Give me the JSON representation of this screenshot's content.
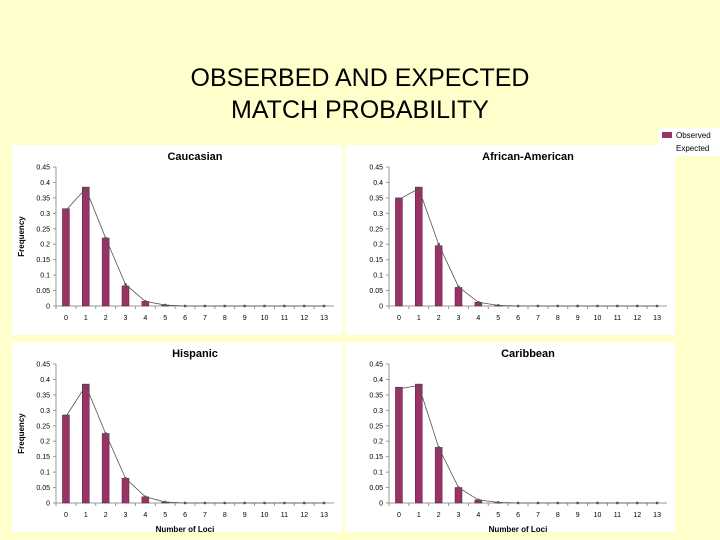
{
  "slide": {
    "title_line1": "OBSERBED AND EXPECTED",
    "title_line2": "MATCH PROBABILITY"
  },
  "legend": {
    "observed_label": "Observed",
    "expected_label": "Expected",
    "observed_color": "#993366",
    "expected_color": "#555555"
  },
  "chart_data": [
    {
      "type": "bar",
      "title": "Caucasian",
      "xlabel": "",
      "ylabel": "Frequency",
      "categories": [
        "0",
        "1",
        "2",
        "3",
        "4",
        "5",
        "6",
        "7",
        "8",
        "9",
        "10",
        "11",
        "12",
        "13"
      ],
      "yticks": [
        "0",
        "0.05",
        "0.1",
        "0.15",
        "0.2",
        "0.25",
        "0.3",
        "0.35",
        "0.4",
        "0.45"
      ],
      "ylim": [
        0,
        0.45
      ],
      "series": [
        {
          "name": "Observed",
          "values": [
            0.315,
            0.385,
            0.22,
            0.065,
            0.015,
            0.003,
            0,
            0,
            0,
            0,
            0,
            0,
            0,
            0
          ]
        },
        {
          "name": "Expected",
          "values": [
            0.31,
            0.38,
            0.22,
            0.07,
            0.015,
            0.003,
            0,
            0,
            0,
            0,
            0,
            0,
            0,
            0
          ]
        }
      ]
    },
    {
      "type": "bar",
      "title": "African-American",
      "xlabel": "",
      "ylabel": "",
      "categories": [
        "0",
        "1",
        "2",
        "3",
        "4",
        "5",
        "6",
        "7",
        "8",
        "9",
        "10",
        "11",
        "12",
        "13"
      ],
      "yticks": [
        "0",
        "0.05",
        "0.1",
        "0.15",
        "0.2",
        "0.25",
        "0.3",
        "0.35",
        "0.4",
        "0.45"
      ],
      "ylim": [
        0,
        0.45
      ],
      "series": [
        {
          "name": "Observed",
          "values": [
            0.35,
            0.385,
            0.195,
            0.06,
            0.012,
            0.002,
            0,
            0,
            0,
            0,
            0,
            0,
            0,
            0
          ]
        },
        {
          "name": "Expected",
          "values": [
            0.345,
            0.38,
            0.2,
            0.062,
            0.012,
            0.002,
            0,
            0,
            0,
            0,
            0,
            0,
            0,
            0
          ]
        }
      ]
    },
    {
      "type": "bar",
      "title": "Hispanic",
      "xlabel": "Number of Loci",
      "ylabel": "Frequency",
      "categories": [
        "0",
        "1",
        "2",
        "3",
        "4",
        "5",
        "6",
        "7",
        "8",
        "9",
        "10",
        "11",
        "12",
        "13"
      ],
      "yticks": [
        "0",
        "0.05",
        "0.1",
        "0.15",
        "0.2",
        "0.25",
        "0.3",
        "0.35",
        "0.4",
        "0.45"
      ],
      "ylim": [
        0,
        0.45
      ],
      "series": [
        {
          "name": "Observed",
          "values": [
            0.285,
            0.385,
            0.225,
            0.08,
            0.02,
            0.003,
            0,
            0,
            0,
            0,
            0,
            0,
            0,
            0
          ]
        },
        {
          "name": "Expected",
          "values": [
            0.28,
            0.38,
            0.225,
            0.08,
            0.02,
            0.003,
            0,
            0,
            0,
            0,
            0,
            0,
            0,
            0
          ]
        }
      ]
    },
    {
      "type": "bar",
      "title": "Caribbean",
      "xlabel": "Number of Loci",
      "ylabel": "",
      "categories": [
        "0",
        "1",
        "2",
        "3",
        "4",
        "5",
        "6",
        "7",
        "8",
        "9",
        "10",
        "11",
        "12",
        "13"
      ],
      "yticks": [
        "0",
        "0.05",
        "0.1",
        "0.15",
        "0.2",
        "0.25",
        "0.3",
        "0.35",
        "0.4",
        "0.45"
      ],
      "ylim": [
        0,
        0.45
      ],
      "series": [
        {
          "name": "Observed",
          "values": [
            0.375,
            0.385,
            0.18,
            0.05,
            0.01,
            0.002,
            0,
            0,
            0,
            0,
            0,
            0,
            0,
            0
          ]
        },
        {
          "name": "Expected",
          "values": [
            0.37,
            0.38,
            0.18,
            0.05,
            0.01,
            0.002,
            0,
            0,
            0,
            0,
            0,
            0,
            0,
            0
          ]
        }
      ]
    }
  ]
}
